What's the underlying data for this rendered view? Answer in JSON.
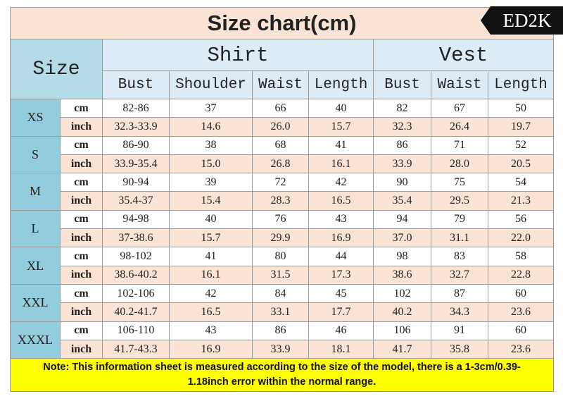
{
  "title": "Size chart(cm)",
  "logo": "ED2K",
  "header": {
    "size": "Size",
    "groups": [
      {
        "name": "Shirt",
        "span": 4
      },
      {
        "name": "Vest",
        "span": 3
      }
    ],
    "columns": [
      "Bust",
      "Shoulder",
      "Waist",
      "Length",
      "Bust",
      "Waist",
      "Length"
    ]
  },
  "sizes": [
    {
      "size": "XS",
      "rows": [
        {
          "unit": "cm",
          "cells": [
            "82-86",
            "37",
            "66",
            "40",
            "82",
            "67",
            "50"
          ]
        },
        {
          "unit": "inch",
          "cells": [
            "32.3-33.9",
            "14.6",
            "26.0",
            "15.7",
            "32.3",
            "26.4",
            "19.7"
          ]
        }
      ]
    },
    {
      "size": "S",
      "rows": [
        {
          "unit": "cm",
          "cells": [
            "86-90",
            "38",
            "68",
            "41",
            "86",
            "71",
            "52"
          ]
        },
        {
          "unit": "inch",
          "cells": [
            "33.9-35.4",
            "15.0",
            "26.8",
            "16.1",
            "33.9",
            "28.0",
            "20.5"
          ]
        }
      ]
    },
    {
      "size": "M",
      "rows": [
        {
          "unit": "cm",
          "cells": [
            "90-94",
            "39",
            "72",
            "42",
            "90",
            "75",
            "54"
          ]
        },
        {
          "unit": "inch",
          "cells": [
            "35.4-37",
            "15.4",
            "28.3",
            "16.5",
            "35.4",
            "29.5",
            "21.3"
          ]
        }
      ]
    },
    {
      "size": "L",
      "rows": [
        {
          "unit": "cm",
          "cells": [
            "94-98",
            "40",
            "76",
            "43",
            "94",
            "79",
            "56"
          ]
        },
        {
          "unit": "inch",
          "cells": [
            "37-38.6",
            "15.7",
            "29.9",
            "16.9",
            "37.0",
            "31.1",
            "22.0"
          ]
        }
      ]
    },
    {
      "size": "XL",
      "rows": [
        {
          "unit": "cm",
          "cells": [
            "98-102",
            "41",
            "80",
            "44",
            "98",
            "83",
            "58"
          ]
        },
        {
          "unit": "inch",
          "cells": [
            "38.6-40.2",
            "16.1",
            "31.5",
            "17.3",
            "38.6",
            "32.7",
            "22.8"
          ]
        }
      ]
    },
    {
      "size": "XXL",
      "rows": [
        {
          "unit": "cm",
          "cells": [
            "102-106",
            "42",
            "84",
            "45",
            "102",
            "87",
            "60"
          ]
        },
        {
          "unit": "inch",
          "cells": [
            "40.2-41.7",
            "16.5",
            "33.1",
            "17.7",
            "40.2",
            "34.3",
            "23.6"
          ]
        }
      ]
    },
    {
      "size": "XXXL",
      "rows": [
        {
          "unit": "cm",
          "cells": [
            "106-110",
            "43",
            "86",
            "46",
            "106",
            "91",
            "60"
          ]
        },
        {
          "unit": "inch",
          "cells": [
            "41.7-43.3",
            "16.9",
            "33.9",
            "18.1",
            "41.7",
            "35.8",
            "23.6"
          ]
        }
      ]
    }
  ],
  "note": "Note: This information sheet is measured according to the size of the model, there is a 1-3cm/0.39-1.18inch error within the normal range."
}
